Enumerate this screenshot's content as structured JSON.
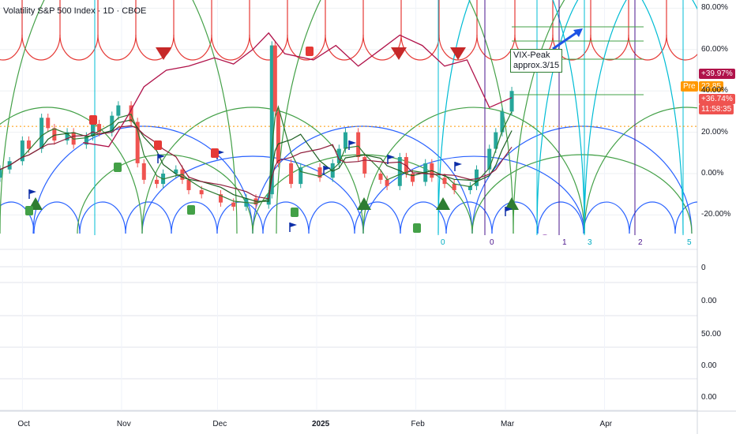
{
  "header": {
    "title": "Volatility S&P 500 Index · 1D · CBOE"
  },
  "right_axis_main": [
    "80.00%",
    "60.00%",
    "40.00%",
    "20.00%",
    "0.00%",
    "-20.00%"
  ],
  "right_axis_panes": [
    "0",
    "0.00",
    "50.00",
    "0.00",
    "0.00"
  ],
  "time_axis": [
    "Oct",
    "Nov",
    "Dec",
    "2025",
    "Feb",
    "Mar",
    "Apr"
  ],
  "price_tags": {
    "series_a": "+39.97%",
    "pre_label": "Pre",
    "pre_value": "22.85",
    "series_b": "+36.74%",
    "countdown": "11:58:35"
  },
  "annotation": {
    "line1": "VIX-Peak",
    "line2": "approx.3/15"
  },
  "cycle_counts": [
    "0",
    "0",
    "1",
    "3",
    "2",
    "5"
  ],
  "colors": {
    "up": "#26a69a",
    "down": "#ef5350",
    "red_arcs": "#e53935",
    "blue_arcs": "#2962ff",
    "green_arcs": "#43a047",
    "cyan_lines": "#00bcd4",
    "purple_lines": "#4a148c",
    "comparison": "#b0124a",
    "pre": "#ff9800"
  },
  "chart_data": {
    "type": "candlestick",
    "title": "Volatility S&P 500 Index",
    "interval": "1D",
    "exchange": "CBOE",
    "y_unit": "percent change",
    "ylim": [
      -25,
      85
    ],
    "x_range": [
      "2024-09-24",
      "2025-04-30"
    ],
    "candles": [
      {
        "d": "2024-09-24",
        "o": -2,
        "c": 2
      },
      {
        "d": "2024-09-27",
        "o": 2,
        "c": 6
      },
      {
        "d": "2024-10-01",
        "o": 6,
        "c": 16
      },
      {
        "d": "2024-10-03",
        "o": 16,
        "c": 12
      },
      {
        "d": "2024-10-07",
        "o": 12,
        "c": 27
      },
      {
        "d": "2024-10-09",
        "o": 27,
        "c": 22
      },
      {
        "d": "2024-10-11",
        "o": 22,
        "c": 16
      },
      {
        "d": "2024-10-15",
        "o": 16,
        "c": 20
      },
      {
        "d": "2024-10-17",
        "o": 20,
        "c": 14
      },
      {
        "d": "2024-10-21",
        "o": 14,
        "c": 18
      },
      {
        "d": "2024-10-23",
        "o": 18,
        "c": 24
      },
      {
        "d": "2024-10-25",
        "o": 24,
        "c": 20
      },
      {
        "d": "2024-10-29",
        "o": 20,
        "c": 28
      },
      {
        "d": "2024-10-31",
        "o": 28,
        "c": 33
      },
      {
        "d": "2024-11-04",
        "o": 33,
        "c": 25
      },
      {
        "d": "2024-11-06",
        "o": 25,
        "c": 5
      },
      {
        "d": "2024-11-08",
        "o": 5,
        "c": -3
      },
      {
        "d": "2024-11-12",
        "o": -3,
        "c": -5
      },
      {
        "d": "2024-11-14",
        "o": -5,
        "c": 0
      },
      {
        "d": "2024-11-18",
        "o": 0,
        "c": 2
      },
      {
        "d": "2024-11-20",
        "o": 2,
        "c": -3
      },
      {
        "d": "2024-11-22",
        "o": -3,
        "c": -8
      },
      {
        "d": "2024-11-26",
        "o": -8,
        "c": -10
      },
      {
        "d": "2024-12-02",
        "o": -10,
        "c": -14
      },
      {
        "d": "2024-12-06",
        "o": -14,
        "c": -16
      },
      {
        "d": "2024-12-10",
        "o": -16,
        "c": -12
      },
      {
        "d": "2024-12-13",
        "o": -12,
        "c": -15
      },
      {
        "d": "2024-12-17",
        "o": -15,
        "c": -10
      },
      {
        "d": "2024-12-18",
        "o": -10,
        "c": 62
      },
      {
        "d": "2024-12-19",
        "o": 62,
        "c": 30
      },
      {
        "d": "2024-12-20",
        "o": 30,
        "c": 5
      },
      {
        "d": "2024-12-24",
        "o": 5,
        "c": -5
      },
      {
        "d": "2024-12-27",
        "o": -5,
        "c": 3
      },
      {
        "d": "2025-01-02",
        "o": 3,
        "c": -2
      },
      {
        "d": "2025-01-06",
        "o": -2,
        "c": 5
      },
      {
        "d": "2025-01-08",
        "o": 5,
        "c": 12
      },
      {
        "d": "2025-01-10",
        "o": 12,
        "c": 20
      },
      {
        "d": "2025-01-14",
        "o": 20,
        "c": 8
      },
      {
        "d": "2025-01-16",
        "o": 8,
        "c": 0
      },
      {
        "d": "2025-01-21",
        "o": 0,
        "c": -3
      },
      {
        "d": "2025-01-23",
        "o": -3,
        "c": -6
      },
      {
        "d": "2025-01-27",
        "o": -6,
        "c": 8
      },
      {
        "d": "2025-01-29",
        "o": 8,
        "c": 0
      },
      {
        "d": "2025-01-31",
        "o": 0,
        "c": -4
      },
      {
        "d": "2025-02-04",
        "o": -4,
        "c": 5
      },
      {
        "d": "2025-02-06",
        "o": 5,
        "c": -2
      },
      {
        "d": "2025-02-10",
        "o": -2,
        "c": -5
      },
      {
        "d": "2025-02-13",
        "o": -5,
        "c": -8
      },
      {
        "d": "2025-02-18",
        "o": -8,
        "c": -6
      },
      {
        "d": "2025-02-20",
        "o": -6,
        "c": 2
      },
      {
        "d": "2025-02-24",
        "o": 2,
        "c": 12
      },
      {
        "d": "2025-02-26",
        "o": 12,
        "c": 20
      },
      {
        "d": "2025-02-28",
        "o": 20,
        "c": 30
      },
      {
        "d": "2025-03-03",
        "o": 30,
        "c": 39.97
      }
    ],
    "comparison_series": {
      "color": "#b0124a",
      "points": [
        {
          "d": "2024-10-20",
          "v": 15
        },
        {
          "d": "2024-10-28",
          "v": 13
        },
        {
          "d": "2024-11-03",
          "v": 28
        },
        {
          "d": "2024-11-08",
          "v": 42
        },
        {
          "d": "2024-11-15",
          "v": 50
        },
        {
          "d": "2024-11-22",
          "v": 52
        },
        {
          "d": "2024-11-30",
          "v": 56
        },
        {
          "d": "2024-12-06",
          "v": 53
        },
        {
          "d": "2024-12-12",
          "v": 60
        },
        {
          "d": "2024-12-17",
          "v": 68
        },
        {
          "d": "2024-12-22",
          "v": 58
        },
        {
          "d": "2024-12-31",
          "v": 55
        },
        {
          "d": "2025-01-07",
          "v": 62
        },
        {
          "d": "2025-01-14",
          "v": 52
        },
        {
          "d": "2025-01-21",
          "v": 60
        },
        {
          "d": "2025-01-27",
          "v": 67
        },
        {
          "d": "2025-02-03",
          "v": 62
        },
        {
          "d": "2025-02-10",
          "v": 52
        },
        {
          "d": "2025-02-17",
          "v": 55
        },
        {
          "d": "2025-02-24",
          "v": 32
        },
        {
          "d": "2025-03-03",
          "v": 36.74
        }
      ]
    },
    "current": {
      "value": 22.85,
      "series_a_pct": 39.97,
      "series_b_pct": 36.74
    }
  }
}
